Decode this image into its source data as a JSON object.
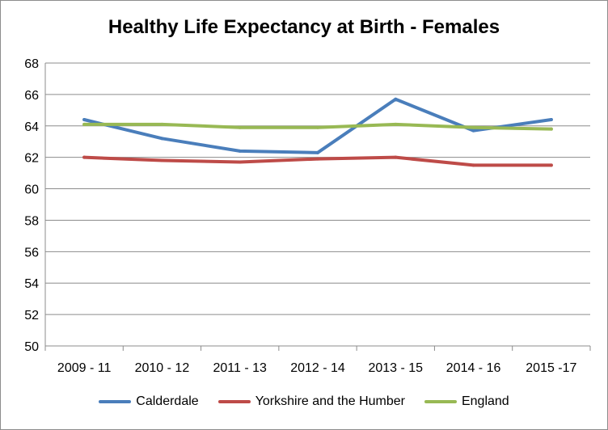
{
  "chart_data": {
    "type": "line",
    "title": "Healthy Life Expectancy at Birth - Females",
    "categories": [
      "2009 - 11",
      "2010 - 12",
      "2011 - 13",
      "2012 - 14",
      "2013 - 15",
      "2014 - 16",
      "2015 -17"
    ],
    "yticks": [
      "50",
      "52",
      "54",
      "56",
      "58",
      "60",
      "62",
      "64",
      "66",
      "68"
    ],
    "ylim": [
      50,
      68
    ],
    "grid": true,
    "legend_position": "bottom",
    "series": [
      {
        "name": "Calderdale",
        "color": "#4a7ebb",
        "values": [
          64.4,
          63.2,
          62.4,
          62.3,
          65.7,
          63.7,
          64.4
        ]
      },
      {
        "name": "Yorkshire and the Humber",
        "color": "#be4b48",
        "values": [
          62.0,
          61.8,
          61.7,
          61.9,
          62.0,
          61.5,
          61.5
        ]
      },
      {
        "name": "England",
        "color": "#98b954",
        "values": [
          64.1,
          64.1,
          63.9,
          63.9,
          64.1,
          63.9,
          63.8
        ]
      }
    ]
  }
}
